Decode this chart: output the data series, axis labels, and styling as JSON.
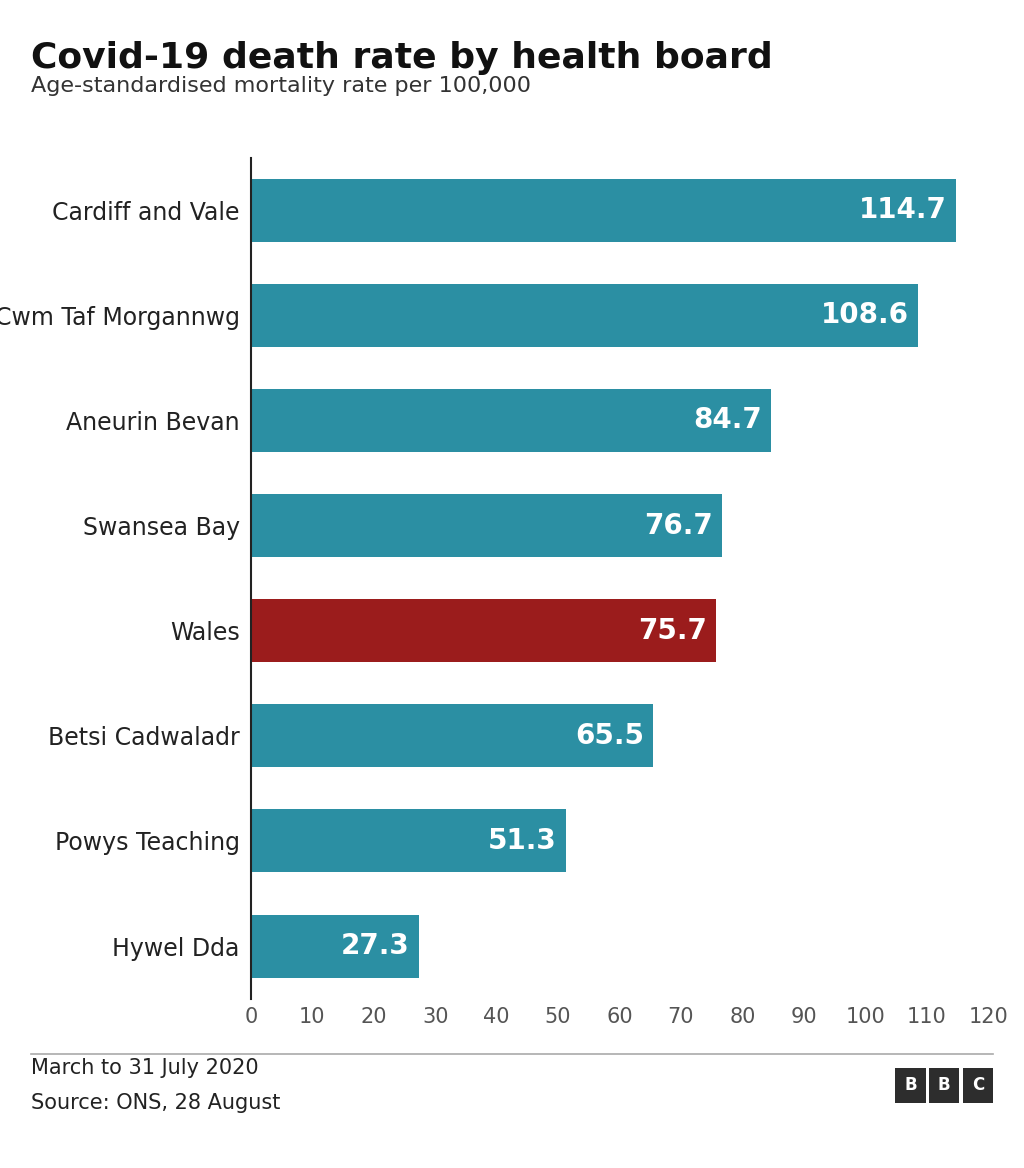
{
  "title": "Covid-19 death rate by health board",
  "subtitle": "Age-standardised mortality rate per 100,000",
  "categories": [
    "Cardiff and Vale",
    "Cwm Taf Morgannwg",
    "Aneurin Bevan",
    "Swansea Bay",
    "Wales",
    "Betsi Cadwaladr",
    "Powys Teaching",
    "Hywel Dda"
  ],
  "values": [
    114.7,
    108.6,
    84.7,
    76.7,
    75.7,
    65.5,
    51.3,
    27.3
  ],
  "bar_colors": [
    "#2b8fa3",
    "#2b8fa3",
    "#2b8fa3",
    "#2b8fa3",
    "#9b1c1c",
    "#2b8fa3",
    "#2b8fa3",
    "#2b8fa3"
  ],
  "label_color": "#ffffff",
  "xlim": [
    0,
    120
  ],
  "xticks": [
    0,
    10,
    20,
    30,
    40,
    50,
    60,
    70,
    80,
    90,
    100,
    110,
    120
  ],
  "footer_date": "March to 31 July 2020",
  "footer_source": "Source: ONS, 28 August",
  "background_color": "#ffffff",
  "title_fontsize": 26,
  "subtitle_fontsize": 16,
  "label_fontsize": 20,
  "ytick_fontsize": 17,
  "tick_fontsize": 15,
  "footer_fontsize": 15,
  "bar_height": 0.6
}
